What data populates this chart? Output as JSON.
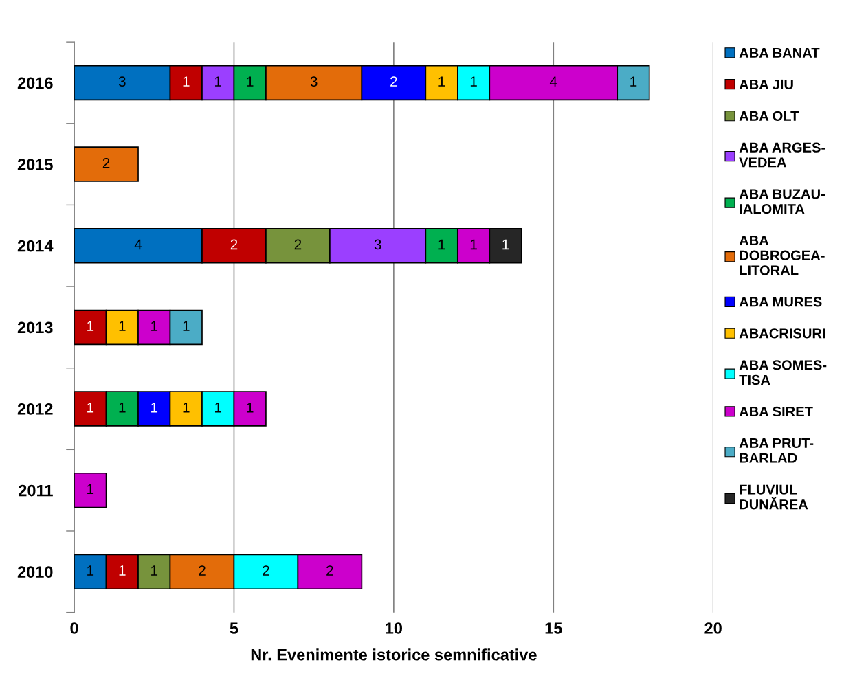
{
  "chart_data": {
    "type": "bar",
    "orientation": "horizontal",
    "stacked": true,
    "xlabel": "Nr. Evenimente istorice semnificative",
    "categories": [
      "2016",
      "2015",
      "2014",
      "2013",
      "2012",
      "2011",
      "2010"
    ],
    "series": [
      {
        "name": "ABA BANAT",
        "color": "#0070c0",
        "values": [
          3,
          null,
          4,
          null,
          null,
          null,
          1
        ]
      },
      {
        "name": "ABA JIU",
        "color": "#c00000",
        "values": [
          1,
          null,
          2,
          1,
          1,
          null,
          1
        ]
      },
      {
        "name": "ABA OLT",
        "color": "#77933c",
        "values": [
          null,
          null,
          2,
          null,
          null,
          null,
          1
        ]
      },
      {
        "name": "ABA ARGES-VEDEA",
        "color": "#9b3fff",
        "values": [
          1,
          null,
          3,
          null,
          null,
          null,
          null
        ]
      },
      {
        "name": "ABA BUZAU-IALOMITA",
        "color": "#00b050",
        "values": [
          1,
          null,
          1,
          null,
          1,
          null,
          null
        ]
      },
      {
        "name": "ABA DOBROGEA-LITORAL",
        "color": "#e36c0a",
        "values": [
          3,
          2,
          null,
          null,
          null,
          null,
          2
        ]
      },
      {
        "name": "ABA MURES",
        "color": "#0000ff",
        "values": [
          2,
          null,
          null,
          null,
          1,
          null,
          null
        ]
      },
      {
        "name": "ABACRISURI",
        "color": "#ffc000",
        "values": [
          1,
          null,
          null,
          1,
          1,
          null,
          null
        ]
      },
      {
        "name": "ABA SOMES-TISA",
        "color": "#00ffff",
        "values": [
          1,
          null,
          null,
          null,
          1,
          null,
          2
        ]
      },
      {
        "name": "ABA SIRET",
        "color": "#cc00cc",
        "values": [
          4,
          null,
          1,
          1,
          1,
          1,
          2
        ]
      },
      {
        "name": "ABA PRUT-BARLAD",
        "color": "#4bacc6",
        "values": [
          1,
          null,
          null,
          1,
          null,
          null,
          null
        ]
      },
      {
        "name": "FLUVIUL DUNĂREA",
        "color": "#262626",
        "values": [
          null,
          null,
          1,
          null,
          null,
          null,
          null
        ]
      }
    ],
    "xlim": [
      0,
      20
    ],
    "xticks": [
      0,
      5,
      10,
      15,
      20
    ],
    "grid": "x",
    "legend": "right",
    "data_labels": true
  }
}
